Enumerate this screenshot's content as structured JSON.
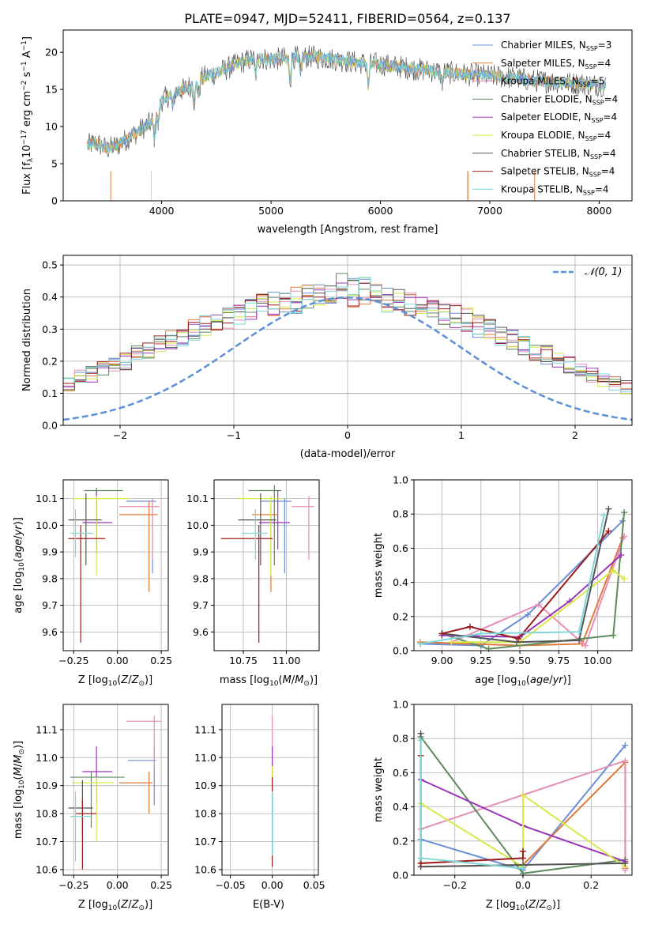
{
  "figure": {
    "title": "PLATE=0947, MJD=52411, FIBERID=0564, z=0.137"
  },
  "colors": {
    "Chabrier MILES": "#6a8fd8",
    "Salpeter MILES": "#e07b39",
    "Kroupa MILES": "#e68fb8",
    "Chabrier ELODIE": "#5e8a5e",
    "Salpeter ELODIE": "#9b35b8",
    "Kroupa ELODIE": "#d8e84a",
    "Chabrier STELIB": "#555555",
    "Salpeter STELIB": "#9b1c1c",
    "Kroupa STELIB": "#7fd6d6",
    "normal": "#5b8fd6"
  },
  "chart_data": [
    {
      "id": "spectrum",
      "type": "line",
      "xlabel": "wavelength [Angstrom, rest frame]",
      "ylabel": "Flux [f_λ 10^-17 erg cm^-2 s^-1 A^-1]",
      "xlim": [
        3100,
        8300
      ],
      "ylim": [
        0,
        23
      ],
      "xticks": [
        4000,
        5000,
        6000,
        7000,
        8000
      ],
      "yticks": [
        0,
        5,
        10,
        15,
        20
      ],
      "grid": false,
      "legend_position": "upper-right",
      "legend": [
        {
          "name": "Chabrier MILES",
          "nssp": "3"
        },
        {
          "name": "Salpeter MILES",
          "nssp": "4"
        },
        {
          "name": "Kroupa MILES",
          "nssp": "5"
        },
        {
          "name": "Chabrier ELODIE",
          "nssp": "4"
        },
        {
          "name": "Salpeter ELODIE",
          "nssp": "4"
        },
        {
          "name": "Kroupa ELODIE",
          "nssp": "4"
        },
        {
          "name": "Chabrier STELIB",
          "nssp": "4"
        },
        {
          "name": "Salpeter STELIB",
          "nssp": "4"
        },
        {
          "name": "Kroupa STELIB",
          "nssp": "4"
        }
      ],
      "continuum": {
        "x": [
          3320,
          3400,
          3500,
          3600,
          3700,
          3800,
          3900,
          3950,
          4000,
          4100,
          4200,
          4300,
          4400,
          4500,
          4600,
          4700,
          4800,
          4900,
          5000,
          5200,
          5400,
          5600,
          5800,
          6000,
          6200,
          6400,
          6600,
          6800,
          7000,
          7200,
          7400,
          7600,
          7800,
          8000,
          8060
        ],
        "y": [
          7.5,
          7.8,
          7.0,
          7.5,
          8.5,
          9.5,
          10.5,
          12.0,
          13.5,
          14.5,
          15.0,
          15.8,
          16.8,
          17.2,
          17.8,
          18.5,
          19.0,
          19.2,
          19.0,
          19.3,
          19.4,
          19.0,
          18.6,
          18.4,
          18.0,
          17.6,
          17.3,
          17.0,
          16.8,
          16.6,
          16.2,
          16.0,
          15.8,
          15.6,
          15.5
        ]
      }
    },
    {
      "id": "residuals",
      "type": "bar",
      "xlabel": "(data-model)/error",
      "ylabel": "Normed distribution",
      "xlim": [
        -2.5,
        2.5
      ],
      "ylim": [
        0,
        0.53
      ],
      "xticks": [
        -2,
        -1,
        0,
        1,
        2
      ],
      "yticks": [
        0.0,
        0.1,
        0.2,
        0.3,
        0.4,
        0.5
      ],
      "grid": true,
      "legend_position": "upper-right",
      "normal_label": "𝒩(0, 1)",
      "bin_width": 0.1,
      "profile": [
        0.02,
        0.02,
        0.03,
        0.03,
        0.04,
        0.04,
        0.05,
        0.05,
        0.06,
        0.07,
        0.08,
        0.09,
        0.1,
        0.11,
        0.12,
        0.13,
        0.15,
        0.16,
        0.18,
        0.19,
        0.2,
        0.22,
        0.23,
        0.25,
        0.27,
        0.28,
        0.3,
        0.31,
        0.33,
        0.34,
        0.35,
        0.36,
        0.37,
        0.38,
        0.39,
        0.39,
        0.4,
        0.4,
        0.4,
        0.4,
        0.41,
        0.4,
        0.4,
        0.39,
        0.39,
        0.38,
        0.37,
        0.36,
        0.35,
        0.34,
        0.33,
        0.31,
        0.3,
        0.28,
        0.27,
        0.25,
        0.23,
        0.22,
        0.2,
        0.19,
        0.17,
        0.16,
        0.14,
        0.13,
        0.12,
        0.11,
        0.1,
        0.09,
        0.08,
        0.07,
        0.06,
        0.05,
        0.05,
        0.04,
        0.04,
        0.03,
        0.03,
        0.03,
        0.02,
        0.02
      ]
    },
    {
      "id": "age_vs_Z",
      "type": "scatter",
      "xlabel": "Z [log10(Z/Z☉)]",
      "ylabel": "age  [log10(age/yr)]",
      "xlim": [
        -0.31,
        0.29
      ],
      "ylim": [
        9.53,
        10.17
      ],
      "xticks": [
        -0.25,
        0.0,
        0.25
      ],
      "yticks": [
        9.6,
        9.7,
        9.8,
        9.9,
        10.0,
        10.1
      ],
      "grid": true,
      "points": [
        {
          "series": "Chabrier MILES",
          "x": 0.2,
          "y": 10.09,
          "x0": 0.05,
          "x1": 0.22,
          "y0": 9.82,
          "y1": 10.1
        },
        {
          "series": "Salpeter MILES",
          "x": 0.18,
          "y": 10.04,
          "x0": 0.01,
          "x1": 0.23,
          "y0": 9.75,
          "y1": 10.09
        },
        {
          "series": "Kroupa MILES",
          "x": 0.2,
          "y": 10.07,
          "x0": 0.01,
          "x1": 0.24,
          "y0": 9.87,
          "y1": 10.1
        },
        {
          "series": "Chabrier ELODIE",
          "x": -0.12,
          "y": 10.13,
          "x0": -0.19,
          "x1": 0.03,
          "y0": 9.89,
          "y1": 10.14
        },
        {
          "series": "Salpeter ELODIE",
          "x": -0.12,
          "y": 10.01,
          "x0": -0.2,
          "x1": -0.03,
          "y0": 9.91,
          "y1": 10.13
        },
        {
          "series": "Kroupa ELODIE",
          "x": -0.12,
          "y": 10.1,
          "x0": -0.26,
          "x1": 0.07,
          "y0": 9.81,
          "y1": 10.11
        },
        {
          "series": "Chabrier STELIB",
          "x": -0.18,
          "y": 10.02,
          "x0": -0.28,
          "x1": -0.09,
          "y0": 9.85,
          "y1": 10.12
        },
        {
          "series": "Salpeter STELIB",
          "x": -0.21,
          "y": 9.95,
          "x0": -0.28,
          "x1": -0.07,
          "y0": 9.56,
          "y1": 10.0
        },
        {
          "series": "Kroupa STELIB",
          "x": -0.24,
          "y": 9.97,
          "x0": -0.27,
          "x1": -0.14,
          "y0": 9.88,
          "y1": 10.06
        }
      ]
    },
    {
      "id": "age_vs_mass",
      "type": "scatter",
      "xlabel": "mass [log10(M/M☉)]",
      "ylabel": "",
      "xlim": [
        10.58,
        11.19
      ],
      "ylim": [
        9.53,
        10.17
      ],
      "xticks": [
        10.75,
        11.0
      ],
      "yticks": [
        9.6,
        9.7,
        9.8,
        9.9,
        10.0,
        10.1
      ],
      "grid": true,
      "points": [
        {
          "series": "Chabrier MILES",
          "x": 10.99,
          "y": 10.09,
          "x0": 10.85,
          "x1": 11.03,
          "y0": 9.82,
          "y1": 10.1
        },
        {
          "series": "Salpeter MILES",
          "x": 10.91,
          "y": 10.04,
          "x0": 10.8,
          "x1": 10.95,
          "y0": 9.75,
          "y1": 10.09
        },
        {
          "series": "Kroupa MILES",
          "x": 11.13,
          "y": 10.07,
          "x0": 11.03,
          "x1": 11.16,
          "y0": 9.87,
          "y1": 10.11
        },
        {
          "series": "Chabrier ELODIE",
          "x": 10.93,
          "y": 10.13,
          "x0": 10.78,
          "x1": 10.97,
          "y0": 9.85,
          "y1": 10.15
        },
        {
          "series": "Salpeter ELODIE",
          "x": 10.95,
          "y": 10.01,
          "x0": 10.84,
          "x1": 11.02,
          "y0": 9.91,
          "y1": 10.13
        },
        {
          "series": "Kroupa ELODIE",
          "x": 10.91,
          "y": 10.1,
          "x0": 10.72,
          "x1": 10.98,
          "y0": 9.81,
          "y1": 10.11
        },
        {
          "series": "Chabrier STELIB",
          "x": 10.85,
          "y": 10.02,
          "x0": 10.72,
          "x1": 10.94,
          "y0": 9.85,
          "y1": 10.12
        },
        {
          "series": "Salpeter STELIB",
          "x": 10.84,
          "y": 9.95,
          "x0": 10.62,
          "x1": 10.92,
          "y0": 9.56,
          "y1": 10.0
        },
        {
          "series": "Kroupa STELIB",
          "x": 10.82,
          "y": 9.97,
          "x0": 10.74,
          "x1": 10.89,
          "y0": 9.87,
          "y1": 10.06
        }
      ]
    },
    {
      "id": "weight_vs_age",
      "type": "line",
      "xlabel": "age  [log10(age/yr)]",
      "ylabel": "mass weight",
      "xlim": [
        8.82,
        10.22
      ],
      "ylim": [
        0,
        1.0
      ],
      "xticks": [
        9.0,
        9.25,
        9.5,
        9.75,
        10.0
      ],
      "yticks": [
        0.0,
        0.2,
        0.4,
        0.6,
        0.8,
        1.0
      ],
      "grid": true,
      "series": [
        {
          "name": "Chabrier MILES",
          "x": [
            8.86,
            9.25,
            9.55,
            10.16
          ],
          "y": [
            0.04,
            0.03,
            0.21,
            0.76
          ]
        },
        {
          "name": "Salpeter MILES",
          "x": [
            8.86,
            9.5,
            9.9,
            10.16
          ],
          "y": [
            0.05,
            0.03,
            0.04,
            0.66
          ]
        },
        {
          "name": "Kroupa MILES",
          "x": [
            9.06,
            9.62,
            9.92,
            10.17
          ],
          "y": [
            0.05,
            0.27,
            0.03,
            0.67
          ]
        },
        {
          "name": "Chabrier ELODIE",
          "x": [
            9.0,
            9.3,
            10.1,
            10.17
          ],
          "y": [
            0.1,
            0.01,
            0.09,
            0.81
          ]
        },
        {
          "name": "Salpeter ELODIE",
          "x": [
            9.0,
            9.5,
            9.82,
            10.15
          ],
          "y": [
            0.09,
            0.08,
            0.29,
            0.56
          ]
        },
        {
          "name": "Kroupa ELODIE",
          "x": [
            9.06,
            9.5,
            10.1,
            10.17
          ],
          "y": [
            0.05,
            0.05,
            0.47,
            0.42
          ]
        },
        {
          "name": "Chabrier STELIB",
          "x": [
            9.0,
            9.48,
            9.88,
            10.07
          ],
          "y": [
            0.1,
            0.05,
            0.06,
            0.83
          ]
        },
        {
          "name": "Salpeter STELIB",
          "x": [
            9.0,
            9.18,
            9.49,
            10.07
          ],
          "y": [
            0.1,
            0.14,
            0.07,
            0.7
          ]
        },
        {
          "name": "Kroupa STELIB",
          "x": [
            8.86,
            9.25,
            9.88,
            10.04
          ],
          "y": [
            0.04,
            0.1,
            0.11,
            0.79
          ]
        }
      ]
    },
    {
      "id": "mass_vs_Z",
      "type": "scatter",
      "xlabel": "Z [log10(Z/Z☉)]",
      "ylabel": "mass [log10(M/M☉)]",
      "xlim": [
        -0.31,
        0.29
      ],
      "ylim": [
        10.58,
        11.19
      ],
      "xticks": [
        -0.25,
        0.0,
        0.25
      ],
      "yticks": [
        10.6,
        10.7,
        10.8,
        10.9,
        11.0,
        11.1
      ],
      "grid": true,
      "points": [
        {
          "series": "Chabrier MILES",
          "x": 0.21,
          "y": 10.99,
          "x0": 0.06,
          "x1": 0.22,
          "y0": 10.83,
          "y1": 11.04
        },
        {
          "series": "Salpeter MILES",
          "x": 0.18,
          "y": 10.91,
          "x0": 0.01,
          "x1": 0.2,
          "y0": 10.8,
          "y1": 10.95
        },
        {
          "series": "Kroupa MILES",
          "x": 0.21,
          "y": 11.13,
          "x0": 0.05,
          "x1": 0.25,
          "y0": 10.96,
          "y1": 11.15
        },
        {
          "series": "Chabrier ELODIE",
          "x": -0.15,
          "y": 10.93,
          "x0": -0.27,
          "x1": 0.04,
          "y0": 10.75,
          "y1": 10.95
        },
        {
          "series": "Salpeter ELODIE",
          "x": -0.12,
          "y": 10.95,
          "x0": -0.2,
          "x1": -0.03,
          "y0": 10.84,
          "y1": 11.04
        },
        {
          "series": "Kroupa ELODIE",
          "x": -0.12,
          "y": 10.91,
          "x0": -0.26,
          "x1": -0.02,
          "y0": 10.7,
          "y1": 10.93
        },
        {
          "series": "Chabrier STELIB",
          "x": -0.2,
          "y": 10.82,
          "x0": -0.28,
          "x1": -0.14,
          "y0": 10.72,
          "y1": 10.92
        },
        {
          "series": "Salpeter STELIB",
          "x": -0.2,
          "y": 10.8,
          "x0": -0.24,
          "x1": -0.12,
          "y0": 10.6,
          "y1": 10.85
        },
        {
          "series": "Kroupa STELIB",
          "x": -0.24,
          "y": 10.79,
          "x0": -0.27,
          "x1": -0.15,
          "y0": 10.63,
          "y1": 10.88
        }
      ]
    },
    {
      "id": "mass_vs_ebv",
      "type": "scatter",
      "xlabel": "E(B-V)",
      "ylabel": "",
      "xlim": [
        -0.06,
        0.055
      ],
      "ylim": [
        10.58,
        11.19
      ],
      "xticks": [
        -0.05,
        0.0,
        0.05
      ],
      "yticks": [
        10.6,
        10.7,
        10.8,
        10.9,
        11.0,
        11.1
      ],
      "grid": true,
      "points": [
        {
          "series": "Kroupa MILES",
          "x": 0.0,
          "y": 11.0,
          "x0": 0.0,
          "x1": 0.0,
          "y0": 10.9,
          "y1": 11.15
        },
        {
          "series": "Salpeter ELODIE",
          "x": 0.0,
          "y": 10.95,
          "x0": 0.0,
          "x1": 0.0,
          "y0": 10.85,
          "y1": 11.04
        },
        {
          "series": "Kroupa ELODIE",
          "x": 0.0,
          "y": 10.93,
          "x0": 0.0,
          "x1": 0.0,
          "y0": 10.82,
          "y1": 10.97
        },
        {
          "series": "Salpeter STELIB",
          "x": 0.0,
          "y": 10.8,
          "x0": 0.0,
          "x1": 0.0,
          "y0": 10.61,
          "y1": 10.93
        },
        {
          "series": "Kroupa STELIB",
          "x": 0.0,
          "y": 10.78,
          "x0": 0.0,
          "x1": 0.0,
          "y0": 10.65,
          "y1": 10.88
        }
      ]
    },
    {
      "id": "weight_vs_Z",
      "type": "line",
      "xlabel": "Z [log10(Z/Z☉)]",
      "ylabel": "mass weight",
      "xlim": [
        -0.32,
        0.32
      ],
      "ylim": [
        0,
        1.0
      ],
      "xticks": [
        -0.2,
        0.0,
        0.2
      ],
      "yticks": [
        0.0,
        0.2,
        0.4,
        0.6,
        0.8,
        1.0
      ],
      "grid": true,
      "series": [
        {
          "name": "Chabrier MILES",
          "x": [
            -0.3,
            0.0,
            0.3
          ],
          "y": [
            0.21,
            0.03,
            0.76
          ]
        },
        {
          "name": "Salpeter MILES",
          "x": [
            -0.3,
            0.0,
            0.3,
            0.3
          ],
          "y": [
            0.05,
            0.06,
            0.66,
            0.04
          ]
        },
        {
          "name": "Kroupa MILES",
          "x": [
            -0.3,
            0.0,
            0.3,
            0.3
          ],
          "y": [
            0.27,
            0.47,
            0.67,
            0.03
          ]
        },
        {
          "name": "Chabrier ELODIE",
          "x": [
            -0.3,
            0.0,
            0.3
          ],
          "y": [
            0.81,
            0.01,
            0.09
          ]
        },
        {
          "name": "Salpeter ELODIE",
          "x": [
            -0.3,
            0.0,
            0.3
          ],
          "y": [
            0.56,
            0.29,
            0.08
          ]
        },
        {
          "name": "Kroupa ELODIE",
          "x": [
            -0.3,
            0.0,
            0.0,
            0.3
          ],
          "y": [
            0.42,
            0.05,
            0.47,
            0.05
          ]
        },
        {
          "name": "Chabrier STELIB",
          "x": [
            -0.3,
            -0.3,
            0.0,
            0.3
          ],
          "y": [
            0.83,
            0.05,
            0.06,
            0.07
          ]
        },
        {
          "name": "Salpeter STELIB",
          "x": [
            -0.3,
            -0.3,
            0.0,
            0.0
          ],
          "y": [
            0.7,
            0.07,
            0.1,
            0.14
          ]
        },
        {
          "name": "Kroupa STELIB",
          "x": [
            -0.3,
            -0.3,
            0.0
          ],
          "y": [
            0.79,
            0.1,
            0.04
          ]
        }
      ]
    }
  ]
}
